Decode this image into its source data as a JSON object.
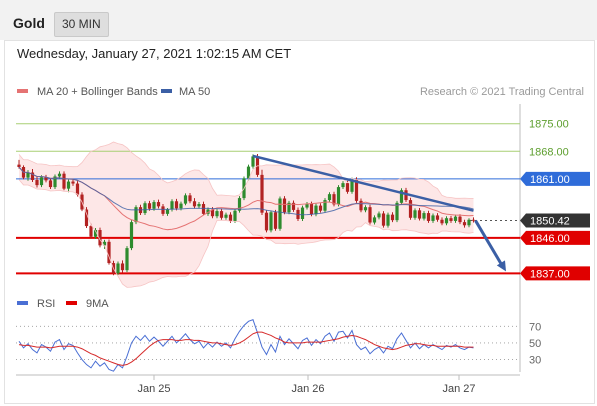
{
  "header": {
    "instrument": "Gold",
    "timeframe": "30 MIN",
    "datetime": "Wednesday, January 27, 2021 1:02:15 AM CET"
  },
  "legend": {
    "ma20_label": "MA 20 + Bollinger Bands",
    "ma50_label": "MA 50",
    "credit": "Research © 2021 Trading Central",
    "rsi_label": "RSI",
    "ma9_label": "9MA"
  },
  "colors": {
    "up": "#2e8b2e",
    "down": "#b22222",
    "ma20": "#e57373",
    "bollinger_fill": "#fde3e3",
    "ma50": "#3b5fa5",
    "resistance_green": "#a8cf74",
    "pivot_blue": "#2f6cd9",
    "support_red": "#e00000",
    "trendline": "#3b5fa5",
    "rsi": "#4a6fd4",
    "rsi_ma": "#d62a2a"
  },
  "chart_data": {
    "type": "candlestick",
    "title": "Gold 30 MIN",
    "x_tick_labels": [
      "Jan 25",
      "Jan 26",
      "Jan 27"
    ],
    "y_range": [
      1832,
      1880
    ],
    "price_levels": [
      {
        "label": "1875.00",
        "value": 1875.0,
        "kind": "resistance"
      },
      {
        "label": "1868.00",
        "value": 1868.0,
        "kind": "resistance"
      },
      {
        "label": "1861.00",
        "value": 1861.0,
        "kind": "pivot"
      },
      {
        "label": "1850.42",
        "value": 1850.42,
        "kind": "last"
      },
      {
        "label": "1846.00",
        "value": 1846.0,
        "kind": "support"
      },
      {
        "label": "1837.00",
        "value": 1837.0,
        "kind": "support"
      }
    ],
    "trendline": {
      "from_bar": 52,
      "from_price": 1866.8,
      "to_bar": 101,
      "to_price": 1852.9
    },
    "forecast_arrow": {
      "from_bar": 101,
      "from_price": 1850.4,
      "to_bar": 106,
      "to_price": 1837.5
    },
    "candles": [
      [
        1864.6,
        1865.8,
        1863.6,
        1864.0
      ],
      [
        1864.0,
        1864.4,
        1860.9,
        1861.3
      ],
      [
        1861.3,
        1863.2,
        1860.5,
        1862.6
      ],
      [
        1862.6,
        1863.5,
        1860.2,
        1860.7
      ],
      [
        1860.7,
        1861.5,
        1858.8,
        1859.4
      ],
      [
        1859.4,
        1861.9,
        1858.9,
        1861.4
      ],
      [
        1861.4,
        1862.0,
        1860.1,
        1860.6
      ],
      [
        1860.6,
        1861.2,
        1858.4,
        1858.9
      ],
      [
        1858.9,
        1862.1,
        1858.4,
        1861.6
      ],
      [
        1861.6,
        1862.9,
        1861.0,
        1862.3
      ],
      [
        1862.3,
        1862.9,
        1858.1,
        1858.5
      ],
      [
        1858.5,
        1860.8,
        1857.6,
        1860.3
      ],
      [
        1860.3,
        1861.0,
        1859.2,
        1859.8
      ],
      [
        1859.8,
        1860.4,
        1856.5,
        1857.0
      ],
      [
        1857.0,
        1857.6,
        1852.8,
        1853.2
      ],
      [
        1853.2,
        1853.8,
        1848.5,
        1849.0
      ],
      [
        1849.0,
        1849.6,
        1845.8,
        1846.3
      ],
      [
        1846.3,
        1848.5,
        1845.7,
        1848.0
      ],
      [
        1848.0,
        1848.6,
        1843.6,
        1844.1
      ],
      [
        1844.1,
        1845.5,
        1843.2,
        1845.0
      ],
      [
        1845.0,
        1845.6,
        1839.2,
        1839.6
      ],
      [
        1839.6,
        1840.2,
        1836.5,
        1837.0
      ],
      [
        1837.0,
        1840.0,
        1836.6,
        1839.5
      ],
      [
        1839.5,
        1840.3,
        1837.2,
        1837.8
      ],
      [
        1837.8,
        1843.9,
        1837.3,
        1843.4
      ],
      [
        1843.4,
        1850.5,
        1842.9,
        1850.0
      ],
      [
        1850.0,
        1854.3,
        1849.5,
        1853.8
      ],
      [
        1853.8,
        1854.4,
        1851.8,
        1852.3
      ],
      [
        1852.3,
        1855.3,
        1851.8,
        1854.8
      ],
      [
        1854.8,
        1855.4,
        1852.9,
        1853.4
      ],
      [
        1853.4,
        1855.6,
        1852.9,
        1855.1
      ],
      [
        1855.1,
        1855.7,
        1853.5,
        1854.0
      ],
      [
        1854.0,
        1854.6,
        1851.6,
        1852.1
      ],
      [
        1852.1,
        1853.6,
        1851.6,
        1853.2
      ],
      [
        1853.2,
        1855.8,
        1852.7,
        1855.3
      ],
      [
        1855.3,
        1855.9,
        1853.0,
        1853.5
      ],
      [
        1853.5,
        1855.2,
        1853.0,
        1854.7
      ],
      [
        1854.7,
        1857.3,
        1854.3,
        1856.8
      ],
      [
        1856.8,
        1857.4,
        1854.8,
        1855.3
      ],
      [
        1855.3,
        1856.1,
        1853.5,
        1854.0
      ],
      [
        1854.0,
        1855.1,
        1853.5,
        1854.6
      ],
      [
        1854.6,
        1855.2,
        1851.7,
        1852.1
      ],
      [
        1852.1,
        1853.7,
        1851.6,
        1853.2
      ],
      [
        1853.2,
        1853.8,
        1851.0,
        1851.5
      ],
      [
        1851.5,
        1853.3,
        1851.0,
        1852.8
      ],
      [
        1852.8,
        1853.4,
        1850.6,
        1851.1
      ],
      [
        1851.1,
        1852.4,
        1850.6,
        1851.9
      ],
      [
        1851.9,
        1852.5,
        1849.8,
        1850.3
      ],
      [
        1850.3,
        1853.4,
        1849.8,
        1852.9
      ],
      [
        1852.9,
        1856.6,
        1852.4,
        1856.1
      ],
      [
        1856.1,
        1861.6,
        1855.6,
        1861.1
      ],
      [
        1861.1,
        1864.6,
        1860.6,
        1864.1
      ],
      [
        1864.1,
        1867.2,
        1863.6,
        1866.7
      ],
      [
        1866.7,
        1867.3,
        1861.5,
        1862.0
      ],
      [
        1862.0,
        1863.3,
        1851.8,
        1852.4
      ],
      [
        1852.4,
        1853.0,
        1847.4,
        1847.9
      ],
      [
        1847.9,
        1852.9,
        1847.4,
        1852.5
      ],
      [
        1852.5,
        1853.1,
        1847.8,
        1848.3
      ],
      [
        1848.3,
        1856.5,
        1847.8,
        1856.0
      ],
      [
        1856.0,
        1856.6,
        1852.0,
        1852.5
      ],
      [
        1852.5,
        1855.4,
        1852.0,
        1854.9
      ],
      [
        1854.9,
        1855.5,
        1852.6,
        1853.1
      ],
      [
        1853.1,
        1853.7,
        1850.3,
        1850.8
      ],
      [
        1850.8,
        1854.2,
        1850.3,
        1853.7
      ],
      [
        1853.7,
        1855.1,
        1853.2,
        1854.6
      ],
      [
        1854.6,
        1855.2,
        1851.5,
        1852.0
      ],
      [
        1852.0,
        1854.7,
        1851.5,
        1854.2
      ],
      [
        1854.2,
        1854.8,
        1852.4,
        1852.9
      ],
      [
        1852.9,
        1856.1,
        1852.4,
        1855.6
      ],
      [
        1855.6,
        1857.6,
        1855.1,
        1857.1
      ],
      [
        1857.1,
        1857.7,
        1854.0,
        1854.5
      ],
      [
        1854.5,
        1859.4,
        1854.0,
        1858.9
      ],
      [
        1858.9,
        1860.4,
        1858.4,
        1859.9
      ],
      [
        1859.9,
        1860.5,
        1857.2,
        1857.7
      ],
      [
        1857.7,
        1861.3,
        1857.2,
        1860.8
      ],
      [
        1860.8,
        1861.4,
        1854.9,
        1855.4
      ],
      [
        1855.4,
        1856.0,
        1852.5,
        1853.0
      ],
      [
        1853.0,
        1854.3,
        1852.5,
        1853.8
      ],
      [
        1853.8,
        1854.4,
        1849.4,
        1849.9
      ],
      [
        1849.9,
        1851.7,
        1849.4,
        1851.2
      ],
      [
        1851.2,
        1852.7,
        1850.7,
        1852.2
      ],
      [
        1852.2,
        1852.8,
        1848.6,
        1849.1
      ],
      [
        1849.1,
        1852.4,
        1848.6,
        1851.9
      ],
      [
        1851.9,
        1852.5,
        1850.0,
        1850.5
      ],
      [
        1850.5,
        1855.4,
        1850.0,
        1854.9
      ],
      [
        1854.9,
        1858.6,
        1854.4,
        1858.1
      ],
      [
        1858.1,
        1858.7,
        1855.1,
        1855.6
      ],
      [
        1855.6,
        1856.2,
        1850.6,
        1851.1
      ],
      [
        1851.1,
        1853.5,
        1850.6,
        1853.0
      ],
      [
        1853.0,
        1853.6,
        1850.4,
        1850.9
      ],
      [
        1850.9,
        1852.8,
        1850.4,
        1852.3
      ],
      [
        1852.3,
        1852.9,
        1849.8,
        1850.3
      ],
      [
        1850.3,
        1852.2,
        1849.8,
        1851.7
      ],
      [
        1851.7,
        1852.3,
        1850.1,
        1850.6
      ],
      [
        1850.6,
        1851.2,
        1849.2,
        1849.7
      ],
      [
        1849.7,
        1851.5,
        1849.2,
        1851.0
      ],
      [
        1851.0,
        1851.6,
        1849.8,
        1850.3
      ],
      [
        1850.3,
        1851.9,
        1849.8,
        1851.4
      ],
      [
        1851.4,
        1852.0,
        1849.5,
        1850.0
      ],
      [
        1850.0,
        1850.6,
        1848.6,
        1849.2
      ],
      [
        1849.2,
        1851.0,
        1848.7,
        1850.6
      ],
      [
        1850.6,
        1851.2,
        1849.9,
        1850.4
      ]
    ],
    "rsi": {
      "y_ticks": [
        "70",
        "50",
        "30"
      ],
      "y_range": [
        15,
        80
      ],
      "rsi_values": [
        52,
        44,
        49,
        42,
        38,
        48,
        45,
        40,
        51,
        54,
        42,
        49,
        47,
        38,
        30,
        24,
        20,
        28,
        22,
        26,
        18,
        16,
        24,
        20,
        34,
        50,
        58,
        53,
        59,
        52,
        57,
        52,
        46,
        52,
        58,
        50,
        55,
        61,
        54,
        49,
        52,
        44,
        50,
        45,
        51,
        46,
        50,
        44,
        55,
        64,
        71,
        76,
        78,
        62,
        45,
        36,
        48,
        39,
        58,
        48,
        55,
        49,
        43,
        53,
        56,
        47,
        54,
        49,
        58,
        62,
        52,
        63,
        64,
        56,
        65,
        48,
        42,
        45,
        37,
        42,
        45,
        38,
        46,
        43,
        55,
        62,
        53,
        44,
        50,
        43,
        48,
        44,
        48,
        45,
        42,
        47,
        45,
        48,
        44,
        42,
        45,
        44
      ],
      "ma_values": [
        48,
        47,
        47,
        46,
        45,
        45,
        45,
        44,
        45,
        46,
        46,
        46,
        46,
        45,
        43,
        40,
        37,
        35,
        32,
        30,
        28,
        26,
        24,
        23,
        24,
        27,
        31,
        36,
        41,
        46,
        50,
        53,
        54,
        54,
        54,
        53,
        53,
        54,
        54,
        53,
        53,
        52,
        51,
        50,
        50,
        49,
        48,
        47,
        48,
        50,
        53,
        57,
        61,
        63,
        63,
        61,
        59,
        56,
        54,
        51,
        50,
        50,
        50,
        50,
        51,
        51,
        51,
        51,
        52,
        53,
        54,
        55,
        57,
        58,
        59,
        58,
        56,
        54,
        51,
        48,
        46,
        44,
        43,
        42,
        43,
        45,
        47,
        48,
        49,
        49,
        48,
        47,
        47,
        46,
        46,
        46,
        46,
        46,
        46,
        45,
        45,
        45
      ]
    }
  }
}
